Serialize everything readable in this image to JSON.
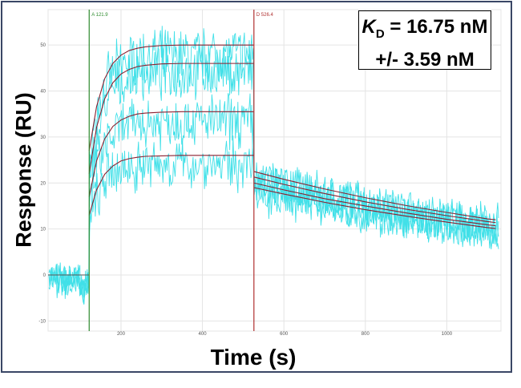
{
  "chart_data": {
    "type": "line",
    "xlabel": "Time (s)",
    "ylabel": "Response (RU)",
    "xlim": [
      21,
      1133
    ],
    "ylim": [
      -12.2,
      57.7
    ],
    "xticks": [
      200,
      400,
      600,
      800,
      1000
    ],
    "yticks": [
      -10,
      0,
      10,
      20,
      30,
      40,
      50
    ],
    "grid": true,
    "markers": [
      {
        "label": "A 121.9",
        "x": 121.9,
        "color": "#2e8b2e"
      },
      {
        "label": "D 526.4",
        "x": 526.4,
        "color": "#b03030"
      }
    ],
    "colors": {
      "raw": "#40e0e8",
      "fit": "#8b2030",
      "grid": "#e4e4e4"
    },
    "baseline_fit": {
      "t": [
        21,
        121.9
      ],
      "y": [
        0,
        0
      ]
    },
    "association_t": [
      121.9,
      140,
      160,
      180,
      200,
      220,
      240,
      260,
      300,
      350,
      400,
      526.4
    ],
    "dissociation_t": [
      526.4,
      600,
      700,
      800,
      900,
      1000,
      1100,
      1120
    ],
    "fit_series": [
      {
        "association": [
          27,
          36.6,
          42.7,
          46.0,
          47.8,
          48.8,
          49.3,
          49.6,
          49.9,
          50,
          50,
          50
        ],
        "dissociation": [
          22.5,
          20.8,
          18.7,
          16.8,
          15.1,
          13.6,
          12.2,
          12.0
        ]
      },
      {
        "association": [
          22,
          32.1,
          38.3,
          41.8,
          43.7,
          44.7,
          45.3,
          45.6,
          45.9,
          46,
          46,
          46
        ],
        "dissociation": [
          21.3,
          19.7,
          17.7,
          15.9,
          14.3,
          12.9,
          11.6,
          11.4
        ]
      },
      {
        "association": [
          17,
          24.8,
          29.6,
          32.3,
          33.7,
          34.5,
          35.0,
          35.2,
          35.4,
          35.5,
          35.5,
          35.5
        ],
        "dissociation": [
          20,
          18.5,
          16.6,
          15.0,
          13.5,
          12.1,
          10.9,
          10.7
        ]
      },
      {
        "association": [
          13,
          18.5,
          21.9,
          23.7,
          24.8,
          25.3,
          25.6,
          25.8,
          25.9,
          26,
          26,
          26
        ],
        "dissociation": [
          19,
          17.6,
          15.8,
          14.2,
          12.8,
          11.5,
          10.3,
          10.1
        ]
      }
    ]
  },
  "annotation": {
    "kd_symbol": "K",
    "kd_subscript": "D",
    "kd_value": " = 16.75 nM",
    "kd_error": "+/- 3.59 nM"
  }
}
